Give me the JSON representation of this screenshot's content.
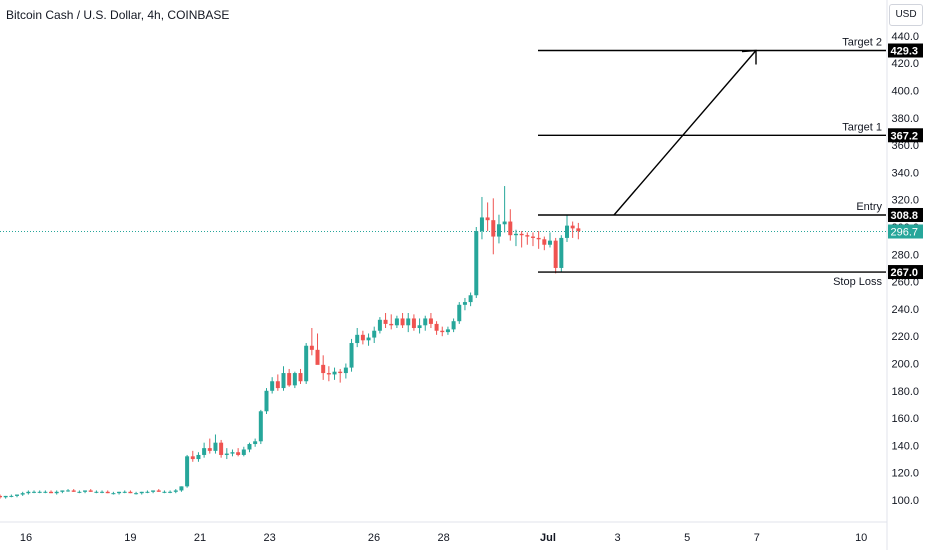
{
  "title": "Bitcoin Cash / U.S. Dollar, 4h, COINBASE",
  "currency": "USD",
  "colors": {
    "up": "#26a69a",
    "down": "#ef5350",
    "text": "#131722",
    "axis": "#131722",
    "current": "#26a69a"
  },
  "chart_data": {
    "type": "candlestick",
    "y_ticks": [
      "100.0",
      "120.0",
      "140.0",
      "160.0",
      "180.0",
      "200.0",
      "220.0",
      "240.0",
      "260.0",
      "280.0",
      "300.0",
      "320.0",
      "340.0",
      "360.0",
      "380.0",
      "400.0",
      "420.0",
      "440.0"
    ],
    "y_range": [
      88,
      448
    ],
    "x_ticks": [
      {
        "label": "16",
        "pos": 4
      },
      {
        "label": "19",
        "pos": 22
      },
      {
        "label": "21",
        "pos": 34
      },
      {
        "label": "23",
        "pos": 46
      },
      {
        "label": "26",
        "pos": 64
      },
      {
        "label": "28",
        "pos": 76
      },
      {
        "label": "Jul",
        "pos": 94
      },
      {
        "label": "3",
        "pos": 106
      },
      {
        "label": "5",
        "pos": 118
      },
      {
        "label": "7",
        "pos": 130
      },
      {
        "label": "10",
        "pos": 148
      }
    ],
    "levels": [
      {
        "name": "Target 2",
        "value": 429.3,
        "label": "429.3"
      },
      {
        "name": "Target 1",
        "value": 367.2,
        "label": "367.2"
      },
      {
        "name": "Entry",
        "value": 308.8,
        "label": "308.8"
      },
      {
        "name": "Stop Loss",
        "value": 267.0,
        "label": "267.0"
      }
    ],
    "current_price": {
      "value": 296.7,
      "label": "296.7"
    },
    "arrow": {
      "from": {
        "t": 105,
        "v": 308.8
      },
      "to": {
        "t": 129,
        "v": 429.3
      }
    },
    "candles": [
      [
        103,
        104,
        101,
        102
      ],
      [
        102,
        103,
        101,
        103
      ],
      [
        103,
        104,
        102,
        103
      ],
      [
        103,
        104,
        102,
        104
      ],
      [
        104,
        106,
        103,
        105
      ],
      [
        105,
        107,
        104,
        106
      ],
      [
        106,
        107,
        105,
        106
      ],
      [
        106,
        107,
        105,
        106
      ],
      [
        106,
        107,
        105,
        106
      ],
      [
        106,
        107,
        105,
        105
      ],
      [
        105,
        107,
        104,
        106
      ],
      [
        106,
        107,
        105,
        107
      ],
      [
        107,
        108,
        106,
        107
      ],
      [
        107,
        108,
        106,
        106
      ],
      [
        106,
        107,
        105,
        106
      ],
      [
        106,
        107,
        105,
        107
      ],
      [
        107,
        108,
        106,
        106
      ],
      [
        106,
        107,
        105,
        106
      ],
      [
        106,
        107,
        105,
        106
      ],
      [
        106,
        107,
        105,
        105
      ],
      [
        105,
        106,
        104,
        105
      ],
      [
        105,
        106,
        104,
        106
      ],
      [
        106,
        107,
        105,
        106
      ],
      [
        106,
        107,
        105,
        105
      ],
      [
        105,
        106,
        104,
        105
      ],
      [
        105,
        106,
        104,
        106
      ],
      [
        106,
        107,
        105,
        106
      ],
      [
        106,
        107,
        105,
        107
      ],
      [
        107,
        108,
        106,
        106
      ],
      [
        106,
        107,
        105,
        106
      ],
      [
        106,
        107,
        105,
        106
      ],
      [
        106,
        108,
        105,
        107
      ],
      [
        107,
        110,
        106,
        110
      ],
      [
        110,
        133,
        109,
        132
      ],
      [
        132,
        136,
        128,
        130
      ],
      [
        130,
        135,
        128,
        133
      ],
      [
        133,
        142,
        131,
        138
      ],
      [
        138,
        145,
        134,
        136
      ],
      [
        136,
        148,
        134,
        142
      ],
      [
        142,
        144,
        131,
        133
      ],
      [
        133,
        138,
        130,
        134
      ],
      [
        134,
        137,
        132,
        135
      ],
      [
        135,
        138,
        132,
        133
      ],
      [
        133,
        139,
        132,
        137
      ],
      [
        137,
        142,
        135,
        141
      ],
      [
        141,
        145,
        139,
        143
      ],
      [
        143,
        166,
        141,
        165
      ],
      [
        165,
        182,
        163,
        180
      ],
      [
        180,
        190,
        178,
        187
      ],
      [
        187,
        192,
        180,
        182
      ],
      [
        182,
        198,
        180,
        193
      ],
      [
        193,
        196,
        183,
        184
      ],
      [
        184,
        194,
        182,
        193
      ],
      [
        193,
        196,
        185,
        187
      ],
      [
        187,
        215,
        185,
        213
      ],
      [
        213,
        226,
        206,
        210
      ],
      [
        210,
        222,
        200,
        199
      ],
      [
        199,
        206,
        188,
        193
      ],
      [
        193,
        198,
        187,
        192
      ],
      [
        192,
        197,
        188,
        194
      ],
      [
        194,
        196,
        186,
        193
      ],
      [
        193,
        200,
        189,
        197
      ],
      [
        197,
        218,
        194,
        215
      ],
      [
        215,
        226,
        212,
        221
      ],
      [
        221,
        224,
        214,
        217
      ],
      [
        217,
        222,
        213,
        219
      ],
      [
        219,
        227,
        215,
        224
      ],
      [
        224,
        234,
        222,
        232
      ],
      [
        232,
        237,
        226,
        229
      ],
      [
        229,
        236,
        225,
        228
      ],
      [
        228,
        235,
        226,
        233
      ],
      [
        233,
        237,
        226,
        228
      ],
      [
        228,
        237,
        223,
        233
      ],
      [
        233,
        236,
        224,
        226
      ],
      [
        226,
        233,
        222,
        228
      ],
      [
        228,
        235,
        224,
        233
      ],
      [
        233,
        237,
        226,
        229
      ],
      [
        229,
        231,
        221,
        224
      ],
      [
        224,
        227,
        220,
        223
      ],
      [
        223,
        227,
        221,
        225
      ],
      [
        225,
        233,
        223,
        231
      ],
      [
        231,
        245,
        229,
        243
      ],
      [
        243,
        248,
        239,
        245
      ],
      [
        245,
        252,
        242,
        250
      ],
      [
        250,
        300,
        248,
        297
      ],
      [
        297,
        322,
        291,
        307
      ],
      [
        307,
        318,
        297,
        305
      ],
      [
        305,
        321,
        280,
        293
      ],
      [
        293,
        309,
        288,
        302
      ],
      [
        302,
        330,
        296,
        304
      ],
      [
        304,
        313,
        290,
        294
      ],
      [
        294,
        298,
        286,
        295
      ],
      [
        295,
        297,
        285,
        294
      ],
      [
        294,
        296,
        287,
        293
      ],
      [
        293,
        296,
        286,
        292
      ],
      [
        292,
        297,
        284,
        291
      ],
      [
        291,
        293,
        283,
        287
      ],
      [
        287,
        296,
        285,
        290
      ],
      [
        290,
        292,
        266,
        270
      ],
      [
        270,
        294,
        267,
        292
      ],
      [
        292,
        309,
        289,
        301
      ],
      [
        301,
        304,
        292,
        299
      ],
      [
        299,
        303,
        291,
        297
      ]
    ]
  }
}
